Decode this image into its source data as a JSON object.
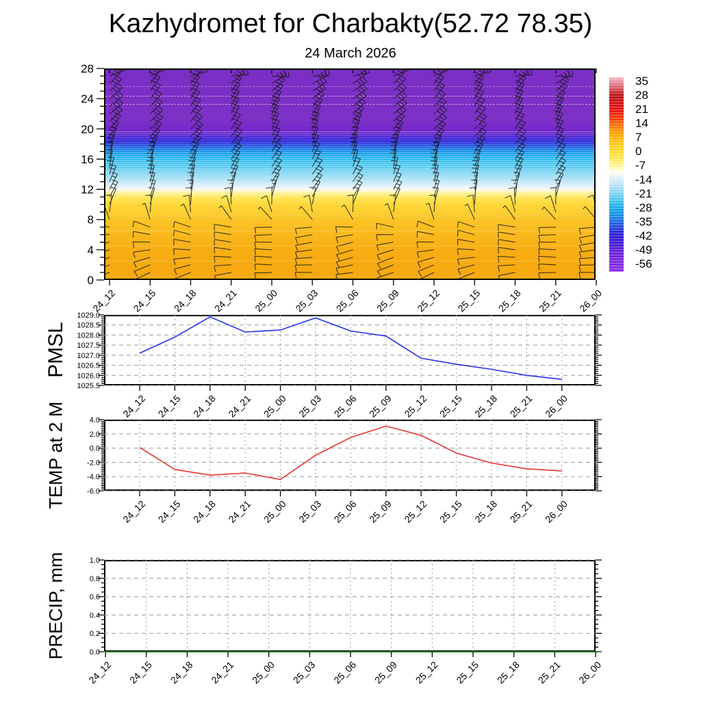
{
  "header": {
    "title": "Kazhydromet for Charbakty(52.72 78.35)",
    "subtitle": "24 March 2026"
  },
  "time_labels": [
    "24_12",
    "24_15",
    "24_18",
    "24_21",
    "25_00",
    "25_03",
    "25_06",
    "25_09",
    "25_12",
    "25_15",
    "25_18",
    "25_21",
    "26_00"
  ],
  "cross_section": {
    "y_tick_labels": [
      "28",
      "24",
      "20",
      "16",
      "12",
      "8",
      "4",
      "0"
    ],
    "colorbar_labels": [
      "35",
      "28",
      "21",
      "14",
      "7",
      "0",
      "-7",
      "-14",
      "-21",
      "-28",
      "-35",
      "-42",
      "-49",
      "-56"
    ]
  },
  "pmsl": {
    "axis_label": "PMSL",
    "y_tick_labels": [
      "1029.0",
      "1028.5",
      "1028.0",
      "1027.5",
      "1027.0",
      "1026.5",
      "1026.0",
      "1025.5"
    ]
  },
  "temp": {
    "axis_label": "TEMP at 2 M",
    "y_tick_labels": [
      "4.0",
      "2.0",
      "0.0",
      "-2.0",
      "-4.0",
      "-6.0"
    ]
  },
  "precip": {
    "axis_label": "PRECIP, mm",
    "y_tick_labels": [
      "1.0",
      "0.8",
      "0.6",
      "0.4",
      "0.2",
      "0.0"
    ]
  },
  "colors": {
    "pmsl_line": "#2233ee",
    "temp_line": "#e63232",
    "precip_line": "#0b7a0b",
    "grid": "#999999",
    "axis": "#000000"
  },
  "chart_data": [
    {
      "type": "heatmap",
      "title": "Temperature / wind cross-section",
      "x": [
        "24_12",
        "24_15",
        "24_18",
        "24_21",
        "25_00",
        "25_03",
        "25_06",
        "25_09",
        "25_12",
        "25_15",
        "25_18",
        "25_21",
        "26_00"
      ],
      "y_range": [
        0,
        28
      ],
      "colorbar_ticks": [
        35,
        28,
        21,
        14,
        7,
        0,
        -7,
        -14,
        -21,
        -28,
        -35,
        -42,
        -49,
        -56
      ],
      "approx_vertical_profile": [
        {
          "h": 0,
          "t": 5
        },
        {
          "h": 6,
          "t": 3
        },
        {
          "h": 9,
          "t": -3
        },
        {
          "h": 10.5,
          "t": -7
        },
        {
          "h": 12,
          "t": -14
        },
        {
          "h": 13.5,
          "t": -20
        },
        {
          "h": 15,
          "t": -26
        },
        {
          "h": 16.5,
          "t": -33
        },
        {
          "h": 17.5,
          "t": -40
        },
        {
          "h": 18.5,
          "t": -48
        },
        {
          "h": 19.5,
          "t": -54
        },
        {
          "h": 28,
          "t": -56
        }
      ],
      "wind_profile": {
        "heights": [
          1,
          2,
          3,
          4,
          5,
          6,
          7,
          8,
          9,
          10,
          11,
          12,
          13,
          14,
          15,
          16,
          17,
          18,
          19,
          20,
          21,
          22,
          23,
          24,
          25,
          26,
          27
        ],
        "dir_deg": [
          192,
          190,
          188,
          185,
          182,
          178,
          172,
          120,
          95,
          80,
          70,
          66,
          64,
          66,
          68,
          66,
          63,
          60,
          57,
          55,
          53,
          51,
          49,
          47,
          45,
          40,
          10
        ],
        "speed_kt": [
          10,
          10,
          10,
          12,
          12,
          12,
          13,
          8,
          10,
          14,
          16,
          18,
          20,
          22,
          23,
          24,
          25,
          26,
          28,
          30,
          32,
          33,
          33,
          32,
          31,
          30,
          28
        ]
      }
    },
    {
      "type": "line",
      "name": "PMSL",
      "x": [
        "24_12",
        "24_15",
        "24_18",
        "24_21",
        "25_00",
        "25_03",
        "25_06",
        "25_09",
        "25_12",
        "25_15",
        "25_18",
        "25_21",
        "26_00"
      ],
      "values": [
        1027.1,
        1027.9,
        1028.9,
        1028.15,
        1028.25,
        1028.85,
        1028.2,
        1027.95,
        1026.85,
        1026.55,
        1026.3,
        1026.0,
        1025.8
      ],
      "ylim": [
        1025.5,
        1029.0
      ],
      "grid": true
    },
    {
      "type": "line",
      "name": "TEMP at 2 M",
      "x": [
        "24_12",
        "24_15",
        "24_18",
        "24_21",
        "25_00",
        "25_03",
        "25_06",
        "25_09",
        "25_12",
        "25_15",
        "25_18",
        "25_21",
        "26_00"
      ],
      "values": [
        0.1,
        -3.0,
        -3.8,
        -3.5,
        -4.4,
        -1.0,
        1.5,
        3.1,
        1.8,
        -0.7,
        -2.1,
        -2.9,
        -3.2
      ],
      "ylim": [
        -6.0,
        4.0
      ],
      "grid": true
    },
    {
      "type": "line",
      "name": "PRECIP, mm",
      "x": [
        "24_12",
        "24_15",
        "24_18",
        "24_21",
        "25_00",
        "25_03",
        "25_06",
        "25_09",
        "25_12",
        "25_15",
        "25_18",
        "25_21",
        "26_00"
      ],
      "values": [
        0,
        0,
        0,
        0,
        0,
        0,
        0,
        0,
        0,
        0,
        0,
        0,
        0
      ],
      "ylim": [
        0.0,
        1.0
      ],
      "grid": true
    }
  ]
}
